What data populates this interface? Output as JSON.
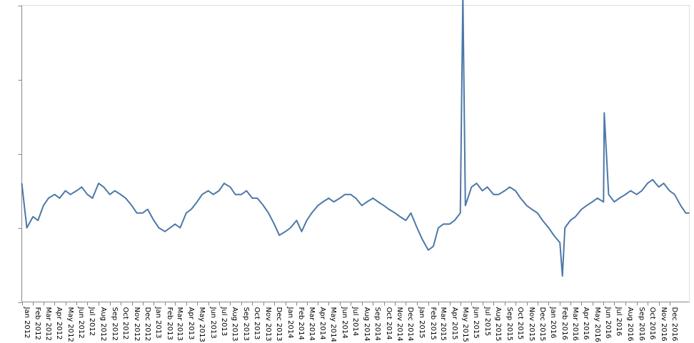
{
  "chart_data": {
    "type": "line",
    "title": "",
    "xlabel": "",
    "ylabel": "",
    "x_range": [
      "2012-01-01",
      "2017-01-25"
    ],
    "ylim": [
      0,
      4
    ],
    "y_tick_values": [
      0,
      1,
      2,
      3,
      4
    ],
    "y_tick_labels_visible": false,
    "grid": false,
    "legend": "none",
    "line_color": "#4c78a8",
    "x_ticks": [
      {
        "date": "2012-01-01",
        "label": "Jan 2012"
      },
      {
        "date": "2012-02-01",
        "label": "Feb 2012"
      },
      {
        "date": "2012-03-01",
        "label": "Mar 2012"
      },
      {
        "date": "2012-04-01",
        "label": "Apr 2012"
      },
      {
        "date": "2012-05-01",
        "label": "May 2012"
      },
      {
        "date": "2012-06-01",
        "label": "Jun 2012"
      },
      {
        "date": "2012-07-01",
        "label": "Jul 2012"
      },
      {
        "date": "2012-08-01",
        "label": "Aug 2012"
      },
      {
        "date": "2012-09-01",
        "label": "Sep 2012"
      },
      {
        "date": "2012-10-01",
        "label": "Oct 2012"
      },
      {
        "date": "2012-11-01",
        "label": "Nov 2012"
      },
      {
        "date": "2012-12-01",
        "label": "Dec 2012"
      },
      {
        "date": "2013-01-01",
        "label": "Jan 2013"
      },
      {
        "date": "2013-02-01",
        "label": "Feb 2013"
      },
      {
        "date": "2013-03-01",
        "label": "Mar 2013"
      },
      {
        "date": "2013-04-01",
        "label": "Apr 2013"
      },
      {
        "date": "2013-05-01",
        "label": "May 2013"
      },
      {
        "date": "2013-06-01",
        "label": "Jun 2013"
      },
      {
        "date": "2013-07-01",
        "label": "Jul 2013"
      },
      {
        "date": "2013-08-01",
        "label": "Aug 2013"
      },
      {
        "date": "2013-09-01",
        "label": "Sep 2013"
      },
      {
        "date": "2013-10-01",
        "label": "Oct 2013"
      },
      {
        "date": "2013-11-01",
        "label": "Nov 2013"
      },
      {
        "date": "2013-12-01",
        "label": "Dec 2013"
      },
      {
        "date": "2014-01-01",
        "label": "Jan 2014"
      },
      {
        "date": "2014-02-01",
        "label": "Feb 2014"
      },
      {
        "date": "2014-03-01",
        "label": "Mar 2014"
      },
      {
        "date": "2014-04-01",
        "label": "Apr 2014"
      },
      {
        "date": "2014-05-01",
        "label": "May 2014"
      },
      {
        "date": "2014-06-01",
        "label": "Jun 2014"
      },
      {
        "date": "2014-07-01",
        "label": "Jul 2014"
      },
      {
        "date": "2014-08-01",
        "label": "Aug 2014"
      },
      {
        "date": "2014-09-01",
        "label": "Sep 2014"
      },
      {
        "date": "2014-10-01",
        "label": "Oct 2014"
      },
      {
        "date": "2014-11-01",
        "label": "Nov 2014"
      },
      {
        "date": "2014-12-01",
        "label": "Dec 2014"
      },
      {
        "date": "2015-01-01",
        "label": "Jan 2015"
      },
      {
        "date": "2015-02-01",
        "label": "Feb 2015"
      },
      {
        "date": "2015-03-01",
        "label": "Mar 2015"
      },
      {
        "date": "2015-04-01",
        "label": "Apr 2015"
      },
      {
        "date": "2015-05-01",
        "label": "May 2015"
      },
      {
        "date": "2015-06-01",
        "label": "Jun 2015"
      },
      {
        "date": "2015-07-01",
        "label": "Jul 2015"
      },
      {
        "date": "2015-08-01",
        "label": "Aug 2015"
      },
      {
        "date": "2015-09-01",
        "label": "Sep 2015"
      },
      {
        "date": "2015-10-01",
        "label": "Oct 2015"
      },
      {
        "date": "2015-11-01",
        "label": "Nov 2015"
      },
      {
        "date": "2015-12-01",
        "label": "Dec 2015"
      },
      {
        "date": "2016-01-01",
        "label": "Jan 2016"
      },
      {
        "date": "2016-02-01",
        "label": "Feb 2016"
      },
      {
        "date": "2016-03-01",
        "label": "Mar 2016"
      },
      {
        "date": "2016-04-01",
        "label": "Apr 2016"
      },
      {
        "date": "2016-05-01",
        "label": "May 2016"
      },
      {
        "date": "2016-06-01",
        "label": "Jun 2016"
      },
      {
        "date": "2016-07-01",
        "label": "Jul 2016"
      },
      {
        "date": "2016-08-01",
        "label": "Aug 2016"
      },
      {
        "date": "2016-09-01",
        "label": "Sep 2016"
      },
      {
        "date": "2016-10-01",
        "label": "Oct 2016"
      },
      {
        "date": "2016-11-01",
        "label": "Nov 2016"
      },
      {
        "date": "2016-12-01",
        "label": "Dec 2016"
      }
    ],
    "series": [
      {
        "x": [
          "2012-01-01",
          "2012-01-15",
          "2012-02-01",
          "2012-02-15",
          "2012-03-01",
          "2012-03-15",
          "2012-04-01",
          "2012-04-15",
          "2012-05-01",
          "2012-05-15",
          "2012-06-01",
          "2012-06-15",
          "2012-07-01",
          "2012-07-15",
          "2012-08-01",
          "2012-08-15",
          "2012-09-01",
          "2012-09-15",
          "2012-10-01",
          "2012-10-15",
          "2012-11-01",
          "2012-11-15",
          "2012-12-01",
          "2012-12-15",
          "2013-01-01",
          "2013-01-15",
          "2013-02-01",
          "2013-02-15",
          "2013-03-01",
          "2013-03-15",
          "2013-04-01",
          "2013-04-15",
          "2013-05-01",
          "2013-05-15",
          "2013-06-01",
          "2013-06-15",
          "2013-07-01",
          "2013-07-15",
          "2013-08-01",
          "2013-08-15",
          "2013-09-01",
          "2013-09-15",
          "2013-10-01",
          "2013-10-15",
          "2013-11-01",
          "2013-11-15",
          "2013-12-01",
          "2013-12-15",
          "2014-01-01",
          "2014-01-15",
          "2014-02-01",
          "2014-02-15",
          "2014-03-01",
          "2014-03-15",
          "2014-04-01",
          "2014-04-15",
          "2014-05-01",
          "2014-05-15",
          "2014-06-01",
          "2014-06-15",
          "2014-07-01",
          "2014-07-15",
          "2014-08-01",
          "2014-08-15",
          "2014-09-01",
          "2014-09-15",
          "2014-10-01",
          "2014-10-15",
          "2014-11-01",
          "2014-11-15",
          "2014-12-01",
          "2014-12-15",
          "2015-01-01",
          "2015-01-15",
          "2015-02-01",
          "2015-02-15",
          "2015-03-01",
          "2015-03-15",
          "2015-04-01",
          "2015-04-15",
          "2015-05-01",
          "2015-05-08",
          "2015-05-15",
          "2015-06-01",
          "2015-06-15",
          "2015-07-01",
          "2015-07-15",
          "2015-08-01",
          "2015-08-15",
          "2015-09-01",
          "2015-09-15",
          "2015-10-01",
          "2015-10-15",
          "2015-11-01",
          "2015-11-15",
          "2015-12-01",
          "2015-12-15",
          "2016-01-01",
          "2016-01-15",
          "2016-02-01",
          "2016-02-08",
          "2016-02-15",
          "2016-03-01",
          "2016-03-15",
          "2016-04-01",
          "2016-04-15",
          "2016-05-01",
          "2016-05-15",
          "2016-06-01",
          "2016-06-03",
          "2016-06-15",
          "2016-07-01",
          "2016-07-15",
          "2016-08-01",
          "2016-08-15",
          "2016-09-01",
          "2016-09-15",
          "2016-10-01",
          "2016-10-15",
          "2016-11-01",
          "2016-11-15",
          "2016-12-01",
          "2016-12-15",
          "2017-01-01",
          "2017-01-15",
          "2017-01-25"
        ],
        "y": [
          1.6,
          1.0,
          1.15,
          1.1,
          1.3,
          1.4,
          1.45,
          1.4,
          1.5,
          1.45,
          1.5,
          1.55,
          1.45,
          1.4,
          1.6,
          1.55,
          1.45,
          1.5,
          1.45,
          1.4,
          1.3,
          1.2,
          1.2,
          1.25,
          1.1,
          1.0,
          0.95,
          1.0,
          1.05,
          1.0,
          1.2,
          1.25,
          1.35,
          1.45,
          1.5,
          1.45,
          1.5,
          1.6,
          1.55,
          1.45,
          1.45,
          1.5,
          1.4,
          1.4,
          1.3,
          1.2,
          1.05,
          0.9,
          0.95,
          1.0,
          1.1,
          0.95,
          1.1,
          1.2,
          1.3,
          1.35,
          1.4,
          1.35,
          1.4,
          1.45,
          1.45,
          1.4,
          1.3,
          1.35,
          1.4,
          1.35,
          1.3,
          1.25,
          1.2,
          1.15,
          1.1,
          1.2,
          1.0,
          0.85,
          0.7,
          0.75,
          1.0,
          1.05,
          1.05,
          1.1,
          1.2,
          4.15,
          1.3,
          1.55,
          1.6,
          1.5,
          1.55,
          1.45,
          1.45,
          1.5,
          1.55,
          1.5,
          1.4,
          1.3,
          1.25,
          1.2,
          1.1,
          1.0,
          0.9,
          0.8,
          0.35,
          1.0,
          1.1,
          1.15,
          1.25,
          1.3,
          1.35,
          1.4,
          1.35,
          2.55,
          1.45,
          1.35,
          1.4,
          1.45,
          1.5,
          1.45,
          1.5,
          1.6,
          1.65,
          1.55,
          1.6,
          1.5,
          1.45,
          1.3,
          1.2,
          1.2
        ]
      }
    ]
  }
}
